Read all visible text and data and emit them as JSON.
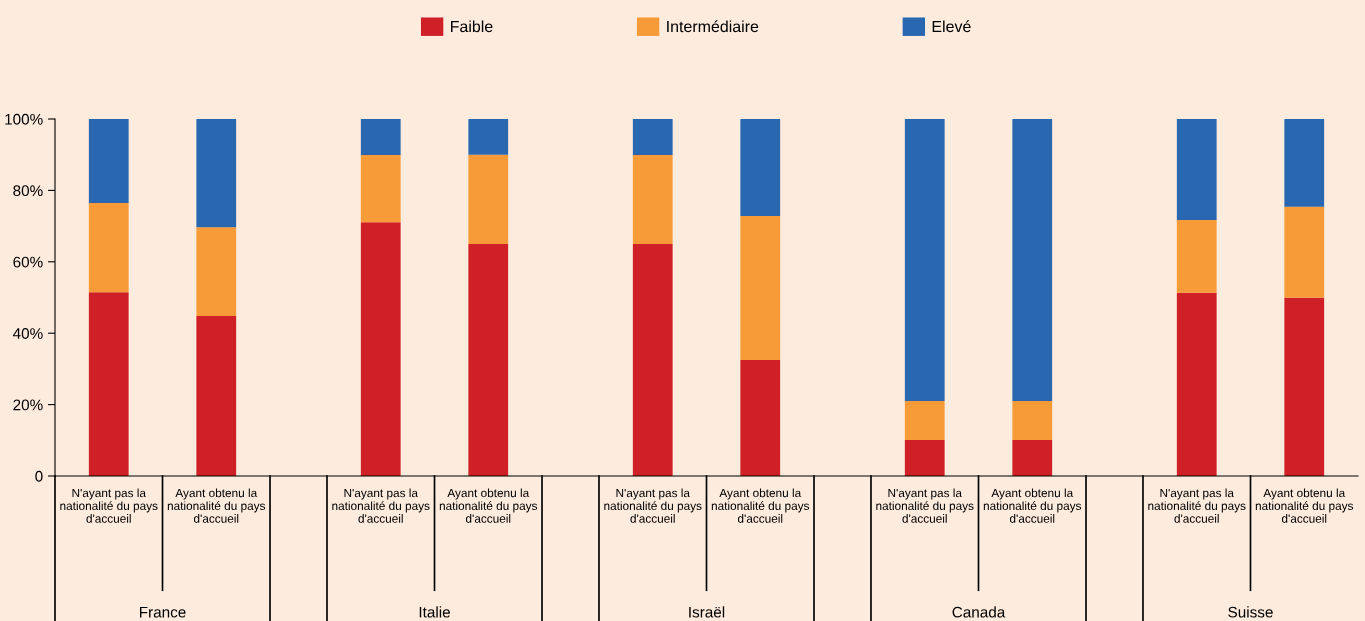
{
  "chart_data": {
    "type": "bar",
    "stacked": true,
    "legend": "top",
    "grid": false,
    "categories": [
      "N'ayant pas la\nnationalité du pays\nd'accueil",
      "Ayant obtenu la\nnationalité du pays\nd'accueil",
      "N'ayant pas la\nnationalité du pays\nd'accueil",
      "Ayant obtenu la\nnationalité du pays\nd'accueil",
      "N'ayant pas la\nnationalité du pays\nd'accueil",
      "Ayant obtenu la\nnationalité du pays\nd'accueil",
      "N'ayant pas la\nnationalité du pays\nd'accueil",
      "Ayant obtenu la\nnationalité du pays\nd'accueil",
      "N'ayant pas la\nnationalité du pays\nd'accueil",
      "Ayant obtenu la\nnationalité du pays\nd'accueil"
    ],
    "series": [
      {
        "name": "Faible",
        "color": "#cf1f27",
        "values": [
          51.5,
          44.8,
          71.1,
          65,
          65,
          32.5,
          10.1,
          10.1,
          51.3,
          49.9
        ]
      },
      {
        "name": "Intermédiaire",
        "color": "#f79a38",
        "values": [
          25,
          24.9,
          18.8,
          25,
          24.9,
          40.3,
          10.9,
          10.9,
          20.4,
          25.5
        ]
      },
      {
        "name": "Elevé",
        "color": "#2a67b1",
        "values": [
          23.5,
          30.3,
          10.1,
          10,
          10.1,
          27.2,
          79,
          79,
          28.3,
          24.6
        ]
      }
    ],
    "ylim": [
      0,
      100
    ],
    "yticks": [
      0,
      {
        "value": 20,
        "label": "20%"
      },
      {
        "value": 40,
        "label": "40%"
      },
      {
        "value": 60,
        "label": "60%"
      },
      {
        "value": 80,
        "label": "80%"
      },
      {
        "value": 100,
        "label": "100%"
      }
    ],
    "annotations": [
      "France",
      "Italie",
      "Israël",
      "Canada",
      "Suisse"
    ]
  }
}
